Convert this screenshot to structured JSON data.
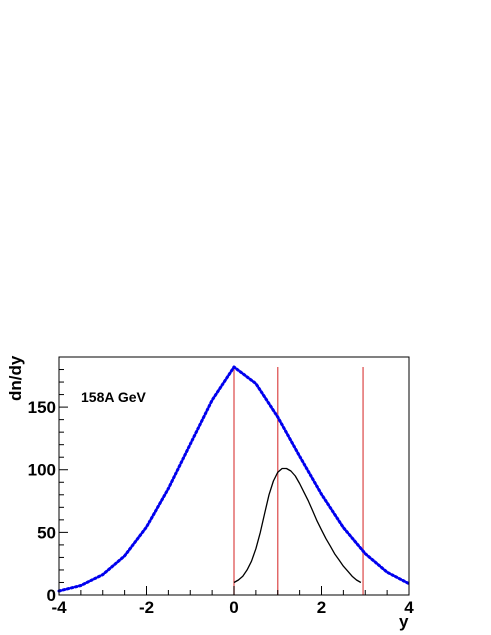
{
  "chart_data": {
    "type": "line",
    "xlabel": "y",
    "ylabel": "dn/dy",
    "annotation": "158A GeV",
    "xlim": [
      -4,
      4
    ],
    "ylim": [
      0,
      190
    ],
    "x_ticks": [
      -4,
      -2,
      0,
      2,
      4
    ],
    "y_ticks": [
      0,
      50,
      100,
      150
    ],
    "grid": false,
    "vertical_lines": {
      "color": "#e06060",
      "x": [
        0,
        1,
        2.95
      ],
      "top": 182
    },
    "series": [
      {
        "style": "dotted",
        "color": "#0000ee",
        "x": [
          -4,
          -3.5,
          -3,
          -2.5,
          -2,
          -1.5,
          -1,
          -0.5,
          0,
          0.5,
          1,
          1.5,
          2,
          2.5,
          3,
          3.5,
          4
        ],
        "values": [
          3.2,
          7.6,
          16.3,
          31.2,
          54.3,
          85.0,
          120.5,
          155.5,
          182,
          168.8,
          142,
          110.8,
          80.4,
          53.8,
          33.0,
          18.2,
          9.0
        ]
      },
      {
        "style": "solid",
        "color": "#000000",
        "x": [
          0,
          0.1,
          0.2,
          0.3,
          0.4,
          0.5,
          0.6,
          0.7,
          0.8,
          0.9,
          1.0,
          1.1,
          1.2,
          1.3,
          1.4,
          1.5,
          1.6,
          1.7,
          1.8,
          1.9,
          2.0,
          2.1,
          2.2,
          2.3,
          2.4,
          2.5,
          2.6,
          2.7,
          2.8,
          2.9
        ],
        "values": [
          10,
          12,
          15,
          20,
          27,
          37,
          50,
          65,
          80,
          91,
          98,
          101,
          101,
          99,
          95,
          89,
          82,
          75,
          67,
          59,
          52,
          45,
          39,
          33,
          28,
          23,
          19,
          15,
          12,
          10
        ]
      }
    ]
  }
}
